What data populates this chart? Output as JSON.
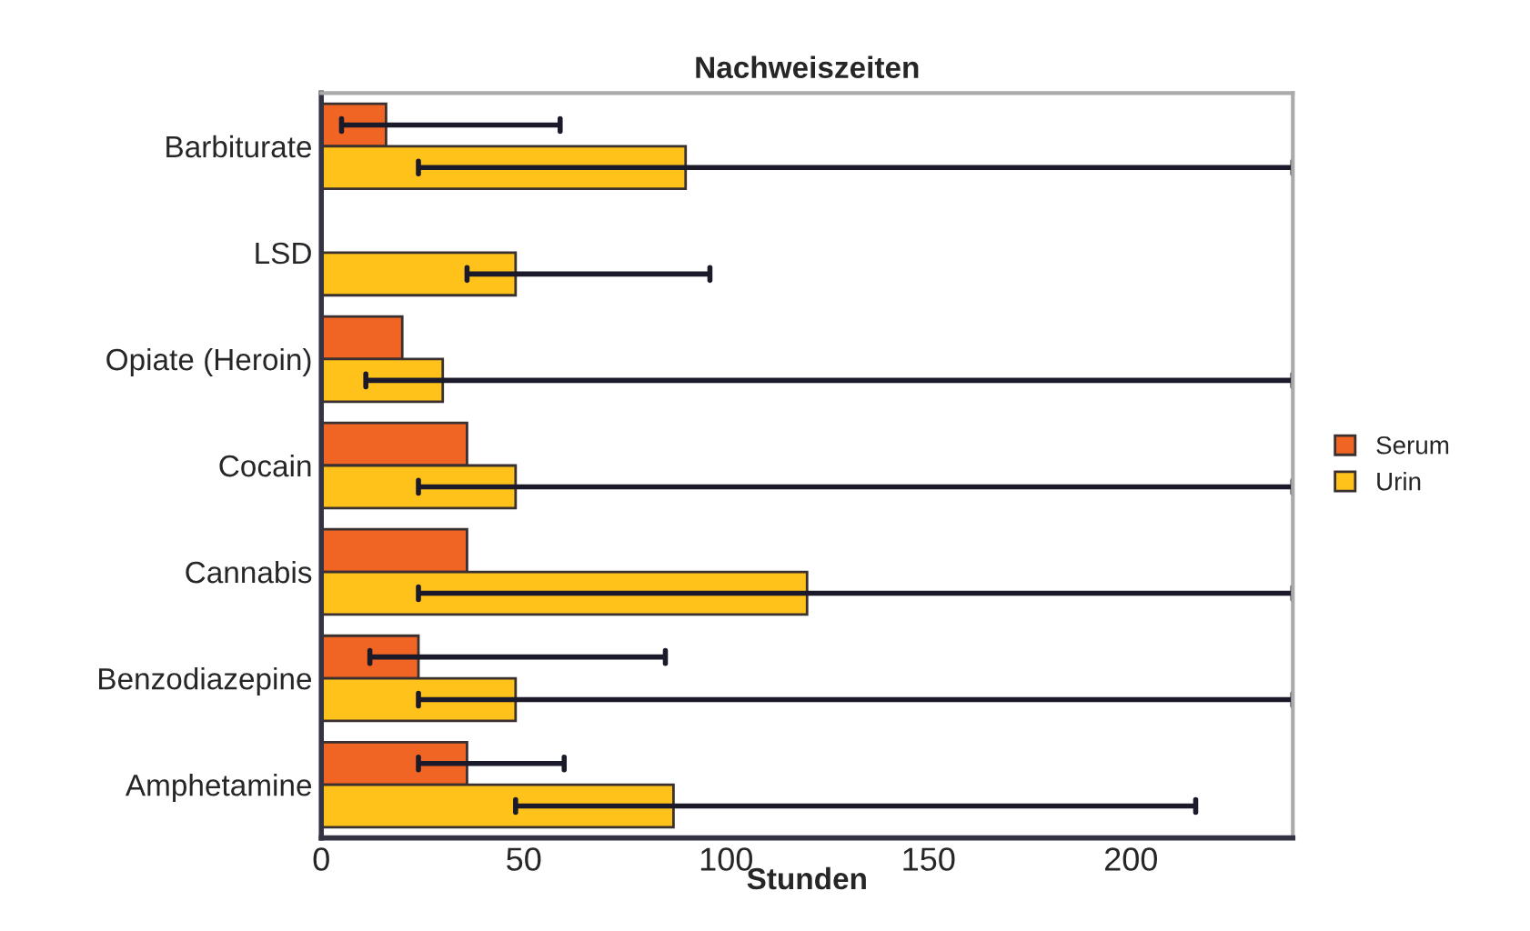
{
  "chart_data": {
    "type": "bar",
    "orientation": "horizontal",
    "title": "Nachweiszeiten",
    "xlabel": "Stunden",
    "categories": [
      "Barbiturate",
      "LSD",
      "Opiate (Heroin)",
      "Cocain",
      "Cannabis",
      "Benzodiazepine",
      "Amphetamine"
    ],
    "series": [
      {
        "name": "Serum",
        "color": "#f06424",
        "values": [
          16,
          null,
          20,
          36,
          36,
          24,
          36
        ],
        "errors": [
          [
            5,
            59
          ],
          null,
          null,
          null,
          null,
          [
            12,
            85
          ],
          [
            24,
            60
          ]
        ]
      },
      {
        "name": "Urin",
        "color": "#ffc21a",
        "values": [
          90,
          48,
          30,
          48,
          120,
          48,
          87
        ],
        "errors": [
          [
            24,
            240
          ],
          [
            36,
            96
          ],
          [
            11,
            240
          ],
          [
            24,
            240
          ],
          [
            24,
            240
          ],
          [
            24,
            240
          ],
          [
            48,
            216
          ]
        ]
      }
    ],
    "xlim": [
      0,
      240
    ],
    "xticks": [
      0,
      50,
      100,
      150,
      200
    ],
    "grid": false,
    "legend": "right"
  }
}
